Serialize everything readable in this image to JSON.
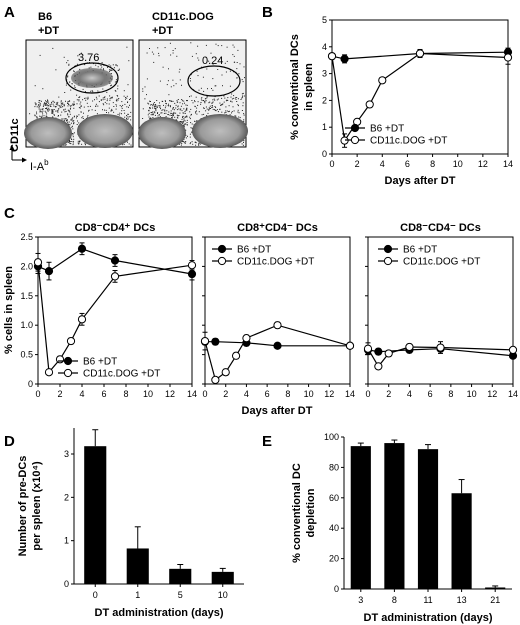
{
  "panel_labels": {
    "A": "A",
    "B": "B",
    "C": "C",
    "D": "D",
    "E": "E"
  },
  "chart_data": [
    {
      "panel": "A",
      "type": "scatter",
      "plots": [
        {
          "title_line1": "B6",
          "title_line2": "+DT",
          "gate_value": "3.76"
        },
        {
          "title_line1": "CD11c.DOG",
          "title_line2": "+DT",
          "gate_value": "0.24"
        }
      ],
      "ylabel": "CD11c",
      "xlabel": "I-A",
      "xlabel_sup": "b"
    },
    {
      "panel": "B",
      "type": "line",
      "xlabel": "Days after DT",
      "ylabel_line1": "% conventional DCs",
      "ylabel_line2": "in spleen",
      "xlim": [
        0,
        14
      ],
      "ylim": [
        0,
        5
      ],
      "xticks": [
        0,
        2,
        4,
        6,
        8,
        10,
        12,
        14
      ],
      "yticks": [
        0,
        1,
        2,
        3,
        4,
        5
      ],
      "legend_position": "bottom-right",
      "series": [
        {
          "name": "B6 +DT",
          "marker": "filled",
          "x": [
            0,
            1,
            7,
            14
          ],
          "y": [
            3.65,
            3.55,
            3.75,
            3.8
          ],
          "err": [
            0.1,
            0.15,
            0.15,
            0.15
          ]
        },
        {
          "name": "CD11c.DOG +DT",
          "marker": "open",
          "x": [
            0,
            1,
            2,
            3,
            4,
            7,
            14
          ],
          "y": [
            3.65,
            0.5,
            1.2,
            1.85,
            2.75,
            3.75,
            3.6
          ],
          "err": [
            0.05,
            0.25,
            0.1,
            0.1,
            0.1,
            0.05,
            0.25
          ]
        }
      ]
    },
    {
      "panel": "C",
      "type": "line",
      "title": "CD8⁻CD4⁺ DCs",
      "xlim": [
        0,
        14
      ],
      "ylim": [
        0,
        2.5
      ],
      "xticks": [
        0,
        2,
        4,
        6,
        8,
        10,
        12,
        14
      ],
      "yticks": [
        0,
        0.5,
        1.0,
        1.5,
        2.0,
        2.5
      ],
      "ytick_labels": [
        "0",
        "0.5",
        "1.0",
        "1.5",
        "2.0",
        "2.5"
      ],
      "ylabel": "% cells in spleen",
      "legend_position": "bottom-right",
      "series": [
        {
          "name": "B6 +DT",
          "marker": "filled",
          "x": [
            0,
            1,
            4,
            7,
            14
          ],
          "y": [
            2.0,
            1.92,
            2.3,
            2.1,
            1.87
          ],
          "err": [
            0.12,
            0.15,
            0.1,
            0.1,
            0.1
          ]
        },
        {
          "name": "CD11c.DOG +DT",
          "marker": "open",
          "x": [
            0,
            1,
            2,
            3,
            4,
            7,
            14
          ],
          "y": [
            2.07,
            0.2,
            0.42,
            0.73,
            1.1,
            1.83,
            2.02
          ],
          "err": [
            0.15,
            0.03,
            0.05,
            0.05,
            0.1,
            0.1,
            0.08
          ]
        }
      ]
    },
    {
      "panel": "C",
      "type": "line",
      "title": "CD8⁺CD4⁻ DCs",
      "xlim": [
        0,
        14
      ],
      "ylim": [
        0,
        2.5
      ],
      "xticks": [
        0,
        2,
        4,
        6,
        8,
        10,
        12,
        14
      ],
      "yticks": [
        0,
        0.5,
        1.0,
        1.5,
        2.0,
        2.5
      ],
      "xlabel": "Days after DT",
      "legend_position": "top-right",
      "series": [
        {
          "name": "B6 +DT",
          "marker": "filled",
          "x": [
            0,
            1,
            4,
            7,
            14
          ],
          "y": [
            0.72,
            0.72,
            0.7,
            0.65,
            0.65
          ],
          "err": [
            0.05,
            0.05,
            0.05,
            0.03,
            0.03
          ]
        },
        {
          "name": "CD11c.DOG +DT",
          "marker": "open",
          "x": [
            0,
            1,
            2,
            3,
            4,
            7,
            14
          ],
          "y": [
            0.73,
            0.07,
            0.2,
            0.48,
            0.78,
            1.0,
            0.65
          ],
          "err": [
            0.15,
            0.02,
            0.05,
            0.05,
            0.05,
            0.05,
            0.03
          ]
        }
      ]
    },
    {
      "panel": "C",
      "type": "line",
      "title": "CD8⁻CD4⁻ DCs",
      "xlim": [
        0,
        14
      ],
      "ylim": [
        0,
        2.5
      ],
      "xticks": [
        0,
        2,
        4,
        6,
        8,
        10,
        12,
        14
      ],
      "yticks": [
        0,
        0.5,
        1.0,
        1.5,
        2.0,
        2.5
      ],
      "legend_position": "top-right",
      "series": [
        {
          "name": "B6 +DT",
          "marker": "filled",
          "x": [
            0,
            1,
            4,
            7,
            14
          ],
          "y": [
            0.58,
            0.55,
            0.58,
            0.6,
            0.48
          ],
          "err": [
            0.07,
            0.05,
            0.05,
            0.05,
            0.03
          ]
        },
        {
          "name": "CD11c.DOG +DT",
          "marker": "open",
          "x": [
            0,
            1,
            2,
            4,
            7,
            14
          ],
          "y": [
            0.6,
            0.3,
            0.52,
            0.63,
            0.62,
            0.58
          ],
          "err": [
            0.1,
            0.03,
            0.05,
            0.05,
            0.1,
            0.03
          ]
        }
      ]
    },
    {
      "panel": "D",
      "type": "bar",
      "categories": [
        "0",
        "1",
        "5",
        "10"
      ],
      "values": [
        3.18,
        0.82,
        0.35,
        0.28
      ],
      "errors": [
        0.38,
        0.5,
        0.1,
        0.08
      ],
      "ylim": [
        0,
        3.6
      ],
      "yticks": [
        0,
        1,
        2,
        3
      ],
      "xlabel": "DT administration (days)",
      "ylabel_line1": "Number of pre-DCs",
      "ylabel_line2": "per spleen (x10⁴)"
    },
    {
      "panel": "E",
      "type": "bar",
      "categories": [
        "3",
        "8",
        "11",
        "13",
        "21"
      ],
      "values": [
        94,
        96,
        92,
        63,
        1
      ],
      "errors": [
        2,
        2,
        3,
        9,
        1
      ],
      "ylim": [
        0,
        100
      ],
      "yticks": [
        0,
        20,
        40,
        60,
        80,
        100
      ],
      "xlabel": "DT administration (days)",
      "ylabel_line1": "% conventional DC",
      "ylabel_line2": "depletion"
    }
  ]
}
